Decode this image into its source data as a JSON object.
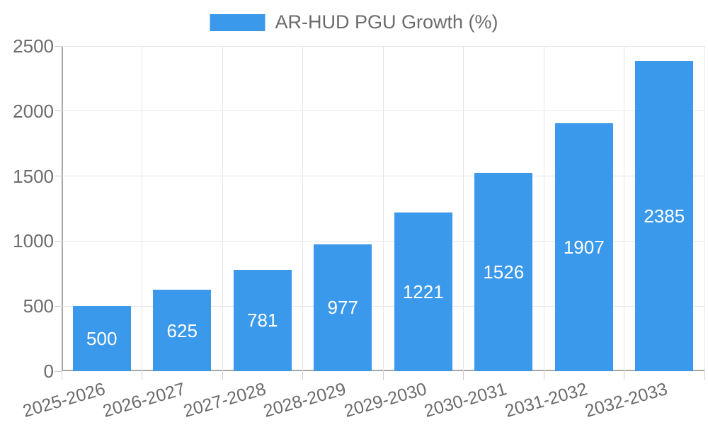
{
  "colors": {
    "bar": "#3b99ec",
    "grid": "#e6e6e6",
    "axis": "#a6a6a6",
    "tick": "#cfcfcf",
    "text": "#6b6b6b",
    "value_label": "#ffffff",
    "background": "#ffffff"
  },
  "chart_data": {
    "type": "bar",
    "title": "AR-HUD PGU Growth (%)",
    "legend_position": "top",
    "categories": [
      "2025-2026",
      "2026-2027",
      "2027-2028",
      "2028-2029",
      "2029-2030",
      "2030-2031",
      "2031-2032",
      "2032-2033"
    ],
    "values": [
      500,
      625,
      781,
      977,
      1221,
      1526,
      1907,
      2385
    ],
    "xlabel": "",
    "ylabel": "",
    "ylim": [
      0,
      2500
    ],
    "yticks": [
      0,
      500,
      1000,
      1500,
      2000,
      2500
    ],
    "grid": "on",
    "bar_value_labels_shown": true,
    "x_tick_rotation_deg": -16
  }
}
